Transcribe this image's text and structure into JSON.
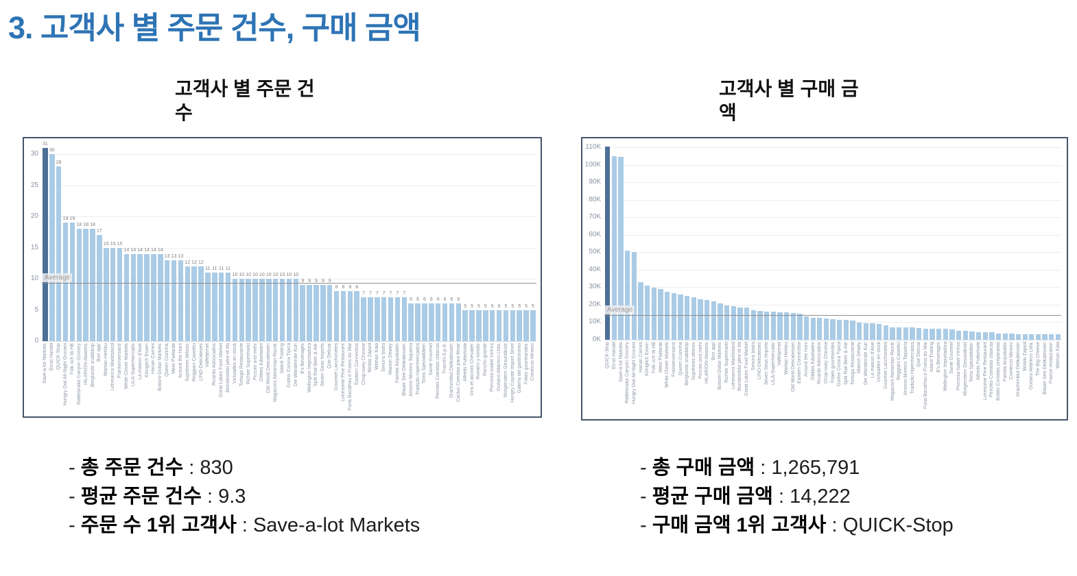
{
  "slide": {
    "title": "3. 고객사 별 주문 건수, 구매 금액",
    "title_color": "#2E74B5",
    "frame_border_color": "#44546A"
  },
  "chart_data": [
    {
      "type": "bar",
      "title": "고객사 별 주문 건수",
      "title_lines": [
        "고객사 별 주문 건",
        "수"
      ],
      "xlabel": "",
      "ylabel": "",
      "ylim": [
        0,
        31
      ],
      "yticks": [
        0,
        5,
        10,
        15,
        20,
        25,
        30
      ],
      "ytick_suffix": "",
      "grid": "horizontal",
      "legend": "none",
      "show_value_labels": true,
      "highlight_index": 0,
      "average": {
        "value": 9.3,
        "label": "Average"
      },
      "colors": {
        "bar": "#a9cbe6",
        "highlight": "#4c6f96"
      },
      "categories": [
        "Save-a-lot Markets",
        "Ernst Handel",
        "QUICK-Stop",
        "Hungry Owl All-Night Grocers",
        "Folk och fä HB",
        "Rattlesnake Canyon Grocery",
        "HILARION-Abastos",
        "Berglunds snabbköp",
        "Bon app'",
        "Wartian Herkku",
        "Lehmanns Marktstand",
        "Frankenversand",
        "White Clover Markets",
        "LILA-Supermercado",
        "La maison d'Asie",
        "Königlich Essen",
        "Hanari Carnes",
        "Bottom-Dollar Markets",
        "Queen Cozinha",
        "Mère Paillarde",
        "Around the Horn",
        "Suprêmes délices",
        "Reggiani Caseifici",
        "LINO-Delicateses",
        "Vaffeljernet",
        "Ricardo Adocicados",
        "Great Lakes Food Market",
        "Blondesddsl père et fils",
        "Victuailles en stock",
        "Tortuga Restaurante",
        "Richter Supermarkt",
        "Piccolo und mehr",
        "Ottilies Käseladen",
        "Old World Delicatessen",
        "Magazzini Alimentari Riuniti",
        "Island Trading",
        "Godos Cocina Típica",
        "Die Wandernde Kuh",
        "B's Beverages",
        "Wellington Importadora",
        "Split Rail Beer & Ale",
        "Seven Seas Imports",
        "Que Delícia",
        "Gourmet Lanchonetes",
        "Lonesome Pine Restaurant",
        "Furia Bacalhau e Frutos do Mar",
        "Eastern Connection",
        "Chop-suey Chinese",
        "Wolski Zajazd",
        "Wilman Kala",
        "Simons bistro",
        "Maison Dewey",
        "Familia Arquibaldo",
        "Blauer See Delikatessen",
        "Antonio Moreno Taquería",
        "Tradição Hipermercados",
        "Toms Spezialitäten",
        "Santé Gourmet",
        "Pericles Comidas clásicas",
        "Franchi S.p.A.",
        "Drachenblut Delikatessen",
        "Cactus Comidas para llevar",
        "Alfreds Futterkiste",
        "Vins et alcools Chevalier",
        "Romero y tomillo",
        "Rancho grande",
        "Princesa Isabel Vinhos",
        "Océano Atlántico Ltda.",
        "Morgenstern Gesundkost",
        "Hungry Coyote Import Store",
        "Galería del gastrónomo",
        "Folies gourmandes",
        "Comércio Mineiro"
      ],
      "values": [
        31,
        30,
        28,
        19,
        19,
        18,
        18,
        18,
        17,
        15,
        15,
        15,
        14,
        14,
        14,
        14,
        14,
        14,
        13,
        13,
        13,
        12,
        12,
        12,
        11,
        11,
        11,
        11,
        10,
        10,
        10,
        10,
        10,
        10,
        10,
        10,
        10,
        10,
        9,
        9,
        9,
        9,
        9,
        8,
        8,
        8,
        8,
        7,
        7,
        7,
        7,
        7,
        7,
        7,
        6,
        6,
        6,
        6,
        6,
        6,
        6,
        6,
        5,
        5,
        5,
        5,
        5,
        5,
        5,
        5,
        5,
        5,
        5
      ]
    },
    {
      "type": "bar",
      "title": "고객사 별 구매 금액",
      "title_lines": [
        "고객사 별 구매 금",
        "액"
      ],
      "xlabel": "",
      "ylabel": "",
      "unit": "K",
      "ylim": [
        0,
        112
      ],
      "yticks": [
        0,
        10,
        20,
        30,
        40,
        50,
        60,
        70,
        80,
        90,
        100,
        110
      ],
      "ytick_suffix": "K",
      "grid": "horizontal",
      "legend": "none",
      "show_value_labels": false,
      "highlight_index": 0,
      "average": {
        "value": 14.222,
        "label": "Average"
      },
      "colors": {
        "bar": "#a9cbe6",
        "highlight": "#4c6f96"
      },
      "categories": [
        "QUICK-Stop",
        "Ernst Handel",
        "Save-a-lot Markets",
        "Rattlesnake Canyon Grocery",
        "Hungry Owl All-Night Grocers",
        "Hanari Carnes",
        "Königlich Essen",
        "Folk och fä HB",
        "Mère Paillarde",
        "White Clover Markets",
        "Frankenversand",
        "Queen Cozinha",
        "Berglunds snabbköp",
        "Suprêmes délices",
        "Piccolo und mehr",
        "HILARION-Abastos",
        "Bon app'",
        "Bottom-Dollar Markets",
        "Richter Supermarkt",
        "Lehmanns Marktstand",
        "Blondesddsl père et fils",
        "Great Lakes Food Market",
        "Simons bistro",
        "LINO-Delicateses",
        "Seven Seas Imports",
        "LILA-Supermercado",
        "Vaffeljernet",
        "Wartian Herkku",
        "Old World Delicatessen",
        "Eastern Connection",
        "Around the Horn",
        "Ottilies Käseladen",
        "Ricardo Adocicados",
        "Chop-suey Chinese",
        "Folies gourmandes",
        "Godos Cocina Típica",
        "Split Rail Beer & Ale",
        "Tortuga Restaurante",
        "Maison Dewey",
        "Die Wandernde Kuh",
        "La maison d'Asie",
        "Victuailles en stock",
        "Gourmet Lanchonetes",
        "Magazzini Alimentari Riuniti",
        "Reggiani Caseifici",
        "Antonio Moreno Taquería",
        "Tradição Hipermercados",
        "Que Delícia",
        "Furia Bacalhau e Frutos do Mar",
        "Island Trading",
        "B's Beverages",
        "Wellington Importadora",
        "Santé Gourmet",
        "Princesa Isabel Vinhos",
        "Morgenstern Gesundkost",
        "Toms Spezialitäten",
        "Alfreds Futterkiste",
        "Lonesome Pine Restaurant",
        "Pericles Comidas clásicas",
        "Bólido Comidas preparadas",
        "Familia Arquibaldo",
        "Comércio Mineiro",
        "Drachenblut Delikatessen",
        "Wolski Zajazd",
        "Océano Atlántico Ltda.",
        "The Big Cheese",
        "Blauer See Delikatessen",
        "France restauration",
        "Wilman Kala"
      ],
      "values": [
        110.3,
        104.9,
        104.4,
        51.1,
        50,
        32.8,
        30.9,
        29.6,
        28.9,
        27.4,
        26.7,
        25.7,
        24.9,
        24.1,
        23.1,
        22.8,
        22,
        20.8,
        19.4,
        19.3,
        18.5,
        18.5,
        16.8,
        16.5,
        16.2,
        16.1,
        15.8,
        15.6,
        15.2,
        14.8,
        13.4,
        12.5,
        12.5,
        12.3,
        11.7,
        11.4,
        11.4,
        10.8,
        9.7,
        9.6,
        9.3,
        9.2,
        8.4,
        7.2,
        7,
        7,
        6.9,
        6.7,
        6.4,
        6.1,
        6.1,
        6.1,
        5.7,
        5,
        5,
        4.8,
        4.3,
        4.3,
        4.2,
        3.5,
        3.4,
        3.4,
        3.3,
        3.3,
        3.2,
        3.2,
        3.1,
        3.1,
        3
      ]
    }
  ],
  "stats": {
    "left": {
      "items": [
        {
          "label": "총 주문 건수",
          "value": "830"
        },
        {
          "label": "평균 주문 건수",
          "value": "9.3"
        },
        {
          "label": "주문 수 1위 고객사",
          "value": "Save-a-lot Markets"
        }
      ]
    },
    "right": {
      "items": [
        {
          "label": "총 구매 금액",
          "value": "1,265,791"
        },
        {
          "label": "평균 구매 금액",
          "value": "14,222"
        },
        {
          "label": "구매 금액 1위 고객사",
          "value": "QUICK-Stop"
        }
      ]
    }
  }
}
